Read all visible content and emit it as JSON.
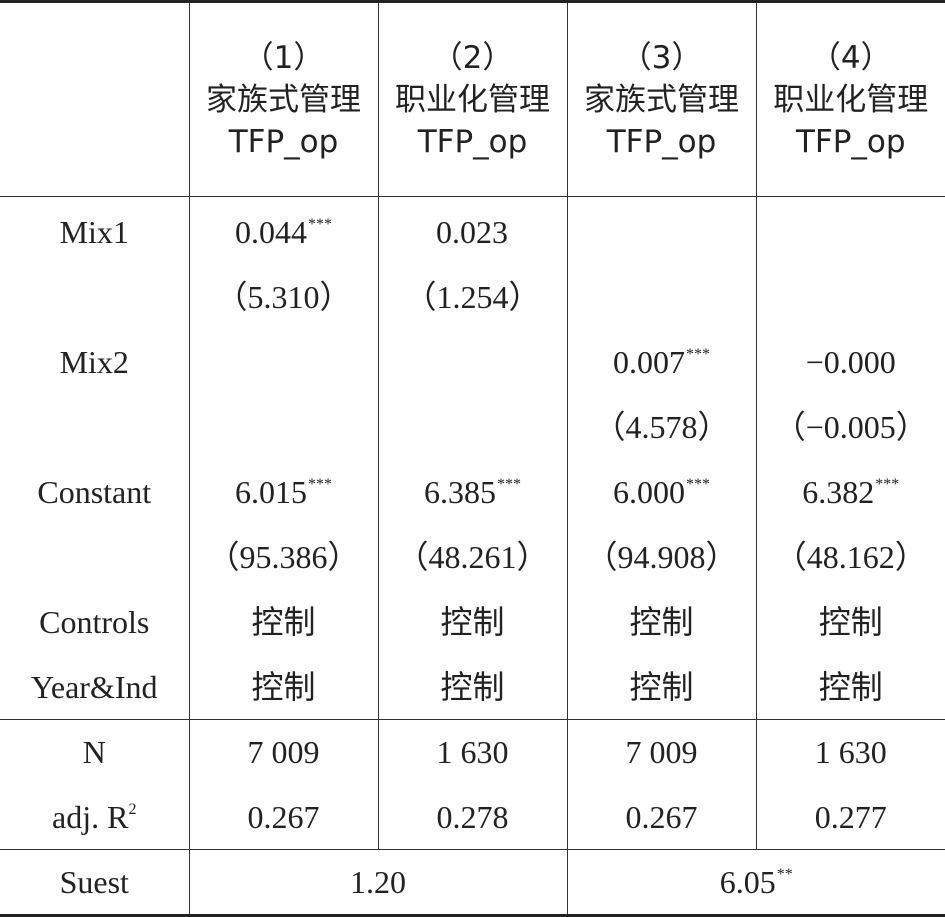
{
  "columns": [
    {
      "num": "（1）",
      "group": "家族式管理",
      "dep": "TFP_op"
    },
    {
      "num": "（2）",
      "group": "职业化管理",
      "dep": "TFP_op"
    },
    {
      "num": "（3）",
      "group": "家族式管理",
      "dep": "TFP_op"
    },
    {
      "num": "（4）",
      "group": "职业化管理",
      "dep": "TFP_op"
    }
  ],
  "rows": {
    "mix1": {
      "label": "Mix1",
      "coef": [
        "0.044",
        "0.023",
        "",
        ""
      ],
      "stars": [
        "***",
        "",
        "",
        ""
      ],
      "t": [
        "5.310",
        "1.254",
        "",
        ""
      ]
    },
    "mix2": {
      "label": "Mix2",
      "coef": [
        "",
        "",
        "0.007",
        "−0.000"
      ],
      "stars": [
        "",
        "",
        "***",
        ""
      ],
      "t": [
        "",
        "",
        "4.578",
        "−0.005"
      ]
    },
    "constant": {
      "label": "Constant",
      "coef": [
        "6.015",
        "6.385",
        "6.000",
        "6.382"
      ],
      "stars": [
        "***",
        "***",
        "***",
        "***"
      ],
      "t": [
        "95.386",
        "48.261",
        "94.908",
        "48.162"
      ]
    },
    "controls": {
      "label": "Controls",
      "values": [
        "控制",
        "控制",
        "控制",
        "控制"
      ]
    },
    "year_ind": {
      "label": "Year&Ind",
      "values": [
        "控制",
        "控制",
        "控制",
        "控制"
      ]
    },
    "n": {
      "label": "N",
      "values": [
        "7 009",
        "1 630",
        "7 009",
        "1 630"
      ]
    },
    "adj_r2": {
      "label": "adj. R",
      "label_sup": "2",
      "values": [
        "0.267",
        "0.278",
        "0.267",
        "0.277"
      ]
    },
    "suest": {
      "label": "Suest",
      "values": [
        "1.20",
        "6.05"
      ],
      "stars": [
        "",
        "**"
      ]
    }
  }
}
